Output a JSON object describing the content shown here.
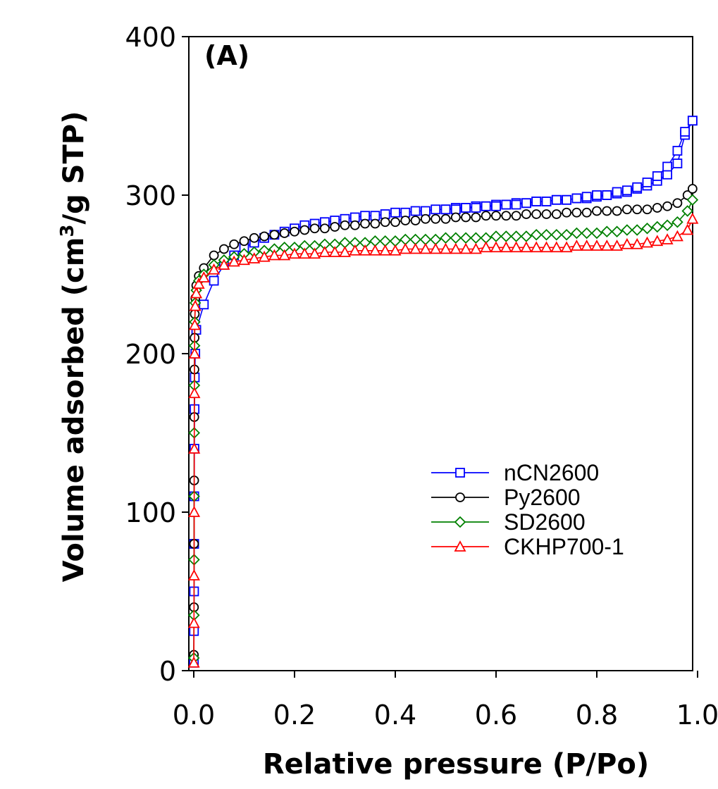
{
  "chart_data": {
    "type": "line",
    "title": "",
    "panel_label": "(A)",
    "xlabel": "Relative pressure (P/Po)",
    "ylabel_main": "Volume adsorbed (cm",
    "ylabel_sup": "3",
    "ylabel_tail": "/g STP)",
    "xlim": [
      0,
      1.0
    ],
    "ylim": [
      0,
      400
    ],
    "xticks": [
      "0.0",
      "0.2",
      "0.4",
      "0.6",
      "0.8",
      "1.0"
    ],
    "yticks": [
      "0",
      "100",
      "200",
      "300",
      "400"
    ],
    "grid": false,
    "legend_position": "center-right",
    "series": [
      {
        "name": "nCN2600",
        "color": "#0000ff",
        "marker": "square",
        "x": [
          0.0002,
          0.0004,
          0.0006,
          0.0008,
          0.001,
          0.0013,
          0.0016,
          0.002,
          0.003,
          0.005,
          0.02,
          0.04,
          0.06,
          0.08,
          0.1,
          0.12,
          0.14,
          0.16,
          0.18,
          0.2,
          0.22,
          0.24,
          0.26,
          0.28,
          0.3,
          0.32,
          0.34,
          0.36,
          0.38,
          0.4,
          0.42,
          0.44,
          0.46,
          0.48,
          0.5,
          0.52,
          0.54,
          0.56,
          0.58,
          0.6,
          0.62,
          0.64,
          0.66,
          0.68,
          0.7,
          0.72,
          0.74,
          0.76,
          0.78,
          0.8,
          0.82,
          0.84,
          0.86,
          0.88,
          0.9,
          0.92,
          0.94,
          0.96,
          0.975,
          0.99,
          0.99,
          0.975,
          0.96,
          0.94,
          0.92,
          0.9,
          0.88,
          0.86,
          0.84,
          0.82,
          0.8,
          0.78,
          0.76,
          0.74,
          0.72,
          0.7,
          0.68,
          0.66,
          0.64,
          0.62,
          0.6,
          0.58,
          0.56,
          0.54,
          0.52,
          0.5
        ],
        "y": [
          5,
          25,
          50,
          80,
          110,
          140,
          165,
          185,
          200,
          215,
          231,
          246,
          256,
          262,
          267,
          270,
          273,
          275,
          277,
          279,
          281,
          282,
          283,
          284,
          285,
          286,
          287,
          287,
          288,
          289,
          289,
          290,
          290,
          291,
          291,
          292,
          292,
          293,
          293,
          294,
          294,
          295,
          295,
          296,
          296,
          297,
          297,
          298,
          298,
          299,
          300,
          301,
          302,
          304,
          306,
          309,
          313,
          320,
          338,
          347,
          347,
          340,
          328,
          318,
          312,
          308,
          305,
          303,
          302,
          300,
          300,
          299,
          298,
          297,
          297,
          296,
          296,
          295,
          294,
          294,
          293,
          293,
          292,
          292,
          291,
          291
        ]
      },
      {
        "name": "Py2600",
        "color": "#000000",
        "marker": "circle",
        "x": [
          0.0002,
          0.0004,
          0.0006,
          0.0008,
          0.001,
          0.0013,
          0.0016,
          0.002,
          0.003,
          0.005,
          0.01,
          0.02,
          0.04,
          0.06,
          0.08,
          0.1,
          0.12,
          0.14,
          0.16,
          0.18,
          0.2,
          0.22,
          0.24,
          0.26,
          0.28,
          0.3,
          0.32,
          0.34,
          0.36,
          0.38,
          0.4,
          0.42,
          0.44,
          0.46,
          0.48,
          0.5,
          0.52,
          0.54,
          0.56,
          0.58,
          0.6,
          0.62,
          0.64,
          0.66,
          0.68,
          0.7,
          0.72,
          0.74,
          0.76,
          0.78,
          0.8,
          0.82,
          0.84,
          0.86,
          0.88,
          0.9,
          0.92,
          0.94,
          0.96,
          0.98,
          0.99
        ],
        "y": [
          10,
          40,
          80,
          120,
          160,
          190,
          210,
          225,
          235,
          243,
          249,
          254,
          262,
          266,
          269,
          271,
          273,
          274,
          275,
          276,
          277,
          278,
          279,
          279,
          280,
          281,
          281,
          282,
          282,
          283,
          283,
          284,
          284,
          285,
          285,
          285,
          286,
          286,
          286,
          287,
          287,
          287,
          287,
          288,
          288,
          288,
          288,
          289,
          289,
          289,
          290,
          290,
          290,
          291,
          291,
          291,
          292,
          293,
          295,
          300,
          304
        ]
      },
      {
        "name": "SD2600",
        "color": "#008000",
        "marker": "diamond",
        "x": [
          0.0002,
          0.0004,
          0.0006,
          0.0008,
          0.001,
          0.0013,
          0.0016,
          0.002,
          0.003,
          0.005,
          0.01,
          0.02,
          0.04,
          0.06,
          0.08,
          0.1,
          0.12,
          0.14,
          0.16,
          0.18,
          0.2,
          0.22,
          0.24,
          0.26,
          0.28,
          0.3,
          0.32,
          0.34,
          0.36,
          0.38,
          0.4,
          0.42,
          0.44,
          0.46,
          0.48,
          0.5,
          0.52,
          0.54,
          0.56,
          0.58,
          0.6,
          0.62,
          0.64,
          0.66,
          0.68,
          0.7,
          0.72,
          0.74,
          0.76,
          0.78,
          0.8,
          0.82,
          0.84,
          0.86,
          0.88,
          0.9,
          0.92,
          0.94,
          0.96,
          0.98,
          0.99
        ],
        "y": [
          8,
          35,
          70,
          110,
          150,
          180,
          205,
          220,
          232,
          240,
          246,
          250,
          256,
          259,
          261,
          263,
          264,
          265,
          266,
          267,
          267,
          268,
          268,
          269,
          269,
          270,
          270,
          270,
          271,
          271,
          271,
          272,
          272,
          272,
          272,
          273,
          273,
          273,
          273,
          273,
          274,
          274,
          274,
          274,
          275,
          275,
          275,
          275,
          276,
          276,
          276,
          277,
          277,
          278,
          278,
          279,
          280,
          281,
          283,
          290,
          297
        ]
      },
      {
        "name": "CKHP700-1",
        "color": "#ff0000",
        "marker": "triangle",
        "x": [
          0.0002,
          0.0004,
          0.0006,
          0.0008,
          0.001,
          0.0013,
          0.0016,
          0.002,
          0.003,
          0.005,
          0.01,
          0.02,
          0.04,
          0.06,
          0.08,
          0.1,
          0.12,
          0.14,
          0.16,
          0.18,
          0.2,
          0.22,
          0.24,
          0.26,
          0.28,
          0.3,
          0.32,
          0.34,
          0.36,
          0.38,
          0.4,
          0.42,
          0.44,
          0.46,
          0.48,
          0.5,
          0.52,
          0.54,
          0.56,
          0.58,
          0.6,
          0.62,
          0.64,
          0.66,
          0.68,
          0.7,
          0.72,
          0.74,
          0.76,
          0.78,
          0.8,
          0.82,
          0.84,
          0.86,
          0.88,
          0.9,
          0.92,
          0.94,
          0.96,
          0.98,
          0.99
        ],
        "y": [
          5,
          30,
          60,
          100,
          140,
          175,
          200,
          218,
          230,
          238,
          244,
          248,
          253,
          256,
          258,
          259,
          260,
          261,
          262,
          262,
          263,
          263,
          263,
          264,
          264,
          264,
          265,
          265,
          265,
          265,
          265,
          266,
          266,
          266,
          266,
          266,
          266,
          266,
          266,
          267,
          267,
          267,
          267,
          267,
          267,
          267,
          267,
          267,
          268,
          268,
          268,
          268,
          268,
          269,
          269,
          270,
          271,
          272,
          274,
          278,
          285
        ]
      }
    ]
  }
}
